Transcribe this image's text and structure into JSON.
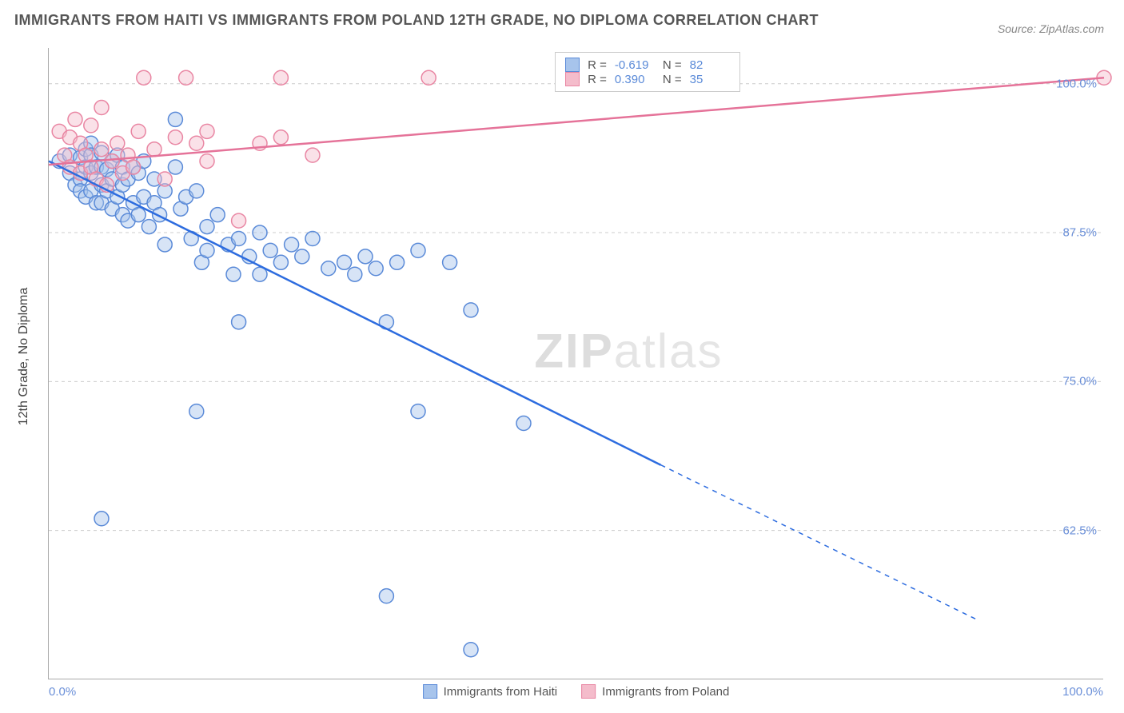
{
  "title": "IMMIGRANTS FROM HAITI VS IMMIGRANTS FROM POLAND 12TH GRADE, NO DIPLOMA CORRELATION CHART",
  "source": "Source: ZipAtlas.com",
  "ylabel": "12th Grade, No Diploma",
  "watermark_a": "ZIP",
  "watermark_b": "atlas",
  "chart": {
    "type": "scatter",
    "background_color": "#ffffff",
    "grid_color": "#cccccc",
    "grid_dash": "4,4",
    "axis_color": "#aaaaaa",
    "xlim": [
      0,
      100
    ],
    "ylim": [
      50,
      103
    ],
    "yticks": [
      62.5,
      75.0,
      87.5,
      100.0
    ],
    "ytick_labels": [
      "62.5%",
      "75.0%",
      "87.5%",
      "100.0%"
    ],
    "xtick_min_label": "0.0%",
    "xtick_max_label": "100.0%",
    "marker_radius": 9,
    "marker_stroke_width": 1.5,
    "marker_fill_opacity": 0.45,
    "trend_line_width": 2.5,
    "series": [
      {
        "name": "Immigrants from Haiti",
        "fill": "#a7c4ec",
        "stroke": "#5a8ad8",
        "trend_color": "#2d6cdf",
        "R": "-0.619",
        "N": "82",
        "trend": {
          "x1": 0,
          "y1": 93.5,
          "x2": 58,
          "y2": 68,
          "x2_ext": 88,
          "y2_ext": 55
        },
        "points": [
          [
            1,
            93.5
          ],
          [
            2,
            94
          ],
          [
            2,
            92.5
          ],
          [
            2.5,
            91.5
          ],
          [
            3,
            93.8
          ],
          [
            3,
            92
          ],
          [
            3,
            91
          ],
          [
            3.5,
            94.5
          ],
          [
            3.5,
            93
          ],
          [
            3.5,
            90.5
          ],
          [
            4,
            95
          ],
          [
            4,
            94
          ],
          [
            4,
            92.5
          ],
          [
            4,
            91
          ],
          [
            4.5,
            93
          ],
          [
            4.5,
            90
          ],
          [
            5,
            94.2
          ],
          [
            5,
            93
          ],
          [
            5,
            91.5
          ],
          [
            5,
            90
          ],
          [
            5.5,
            92.8
          ],
          [
            5.5,
            91
          ],
          [
            6,
            93.5
          ],
          [
            6,
            92
          ],
          [
            6,
            89.5
          ],
          [
            6.5,
            94
          ],
          [
            6.5,
            90.5
          ],
          [
            7,
            93
          ],
          [
            7,
            91.5
          ],
          [
            7,
            89
          ],
          [
            7.5,
            92
          ],
          [
            7.5,
            88.5
          ],
          [
            8,
            93
          ],
          [
            8,
            90
          ],
          [
            8.5,
            92.5
          ],
          [
            8.5,
            89
          ],
          [
            9,
            93.5
          ],
          [
            9,
            90.5
          ],
          [
            9.5,
            88
          ],
          [
            10,
            92
          ],
          [
            10,
            90
          ],
          [
            10.5,
            89
          ],
          [
            11,
            91
          ],
          [
            11,
            86.5
          ],
          [
            12,
            97
          ],
          [
            12,
            93
          ],
          [
            12.5,
            89.5
          ],
          [
            13,
            90.5
          ],
          [
            13.5,
            87
          ],
          [
            14,
            91
          ],
          [
            14.5,
            85
          ],
          [
            15,
            88
          ],
          [
            15,
            86
          ],
          [
            16,
            89
          ],
          [
            17,
            86.5
          ],
          [
            17.5,
            84
          ],
          [
            18,
            87
          ],
          [
            19,
            85.5
          ],
          [
            20,
            87.5
          ],
          [
            20,
            84
          ],
          [
            21,
            86
          ],
          [
            22,
            85
          ],
          [
            23,
            86.5
          ],
          [
            24,
            85.5
          ],
          [
            25,
            87
          ],
          [
            26.5,
            84.5
          ],
          [
            28,
            85
          ],
          [
            29,
            84
          ],
          [
            30,
            85.5
          ],
          [
            31,
            84.5
          ],
          [
            33,
            85
          ],
          [
            35,
            86
          ],
          [
            38,
            85
          ],
          [
            40,
            81
          ],
          [
            5,
            63.5
          ],
          [
            14,
            72.5
          ],
          [
            18,
            80
          ],
          [
            32,
            80
          ],
          [
            35,
            72.5
          ],
          [
            45,
            71.5
          ],
          [
            32,
            57
          ],
          [
            40,
            52.5
          ]
        ]
      },
      {
        "name": "Immigrants from Poland",
        "fill": "#f4bccb",
        "stroke": "#e986a3",
        "trend_color": "#e57399",
        "R": "0.390",
        "N": "35",
        "trend": {
          "x1": 0,
          "y1": 93.2,
          "x2": 100,
          "y2": 100.5
        },
        "points": [
          [
            1,
            96
          ],
          [
            1.5,
            94
          ],
          [
            2,
            95.5
          ],
          [
            2,
            93
          ],
          [
            2.5,
            97
          ],
          [
            3,
            92.5
          ],
          [
            3,
            95
          ],
          [
            3.5,
            94
          ],
          [
            4,
            93
          ],
          [
            4,
            96.5
          ],
          [
            4.5,
            92
          ],
          [
            5,
            94.5
          ],
          [
            5,
            98
          ],
          [
            5.5,
            91.5
          ],
          [
            6,
            93.5
          ],
          [
            6.5,
            95
          ],
          [
            7,
            92.5
          ],
          [
            7.5,
            94
          ],
          [
            8,
            93
          ],
          [
            8.5,
            96
          ],
          [
            9,
            100.5
          ],
          [
            10,
            94.5
          ],
          [
            11,
            92
          ],
          [
            12,
            95.5
          ],
          [
            13,
            100.5
          ],
          [
            14,
            95
          ],
          [
            15,
            93.5
          ],
          [
            15,
            96
          ],
          [
            18,
            88.5
          ],
          [
            20,
            95
          ],
          [
            22,
            95.5
          ],
          [
            22,
            100.5
          ],
          [
            25,
            94
          ],
          [
            36,
            100.5
          ],
          [
            100,
            100.5
          ]
        ]
      }
    ]
  },
  "legend_bottom": {
    "items": [
      {
        "label": "Immigrants from Haiti",
        "fill": "#a7c4ec",
        "stroke": "#5a8ad8"
      },
      {
        "label": "Immigrants from Poland",
        "fill": "#f4bccb",
        "stroke": "#e986a3"
      }
    ]
  },
  "stats_box": {
    "rows": [
      {
        "swatch_fill": "#a7c4ec",
        "swatch_stroke": "#5a8ad8",
        "R_label": "R =",
        "R": "-0.619",
        "N_label": "N =",
        "N": "82"
      },
      {
        "swatch_fill": "#f4bccb",
        "swatch_stroke": "#e986a3",
        "R_label": "R =",
        "R": "0.390",
        "N_label": "N =",
        "N": "35"
      }
    ]
  }
}
